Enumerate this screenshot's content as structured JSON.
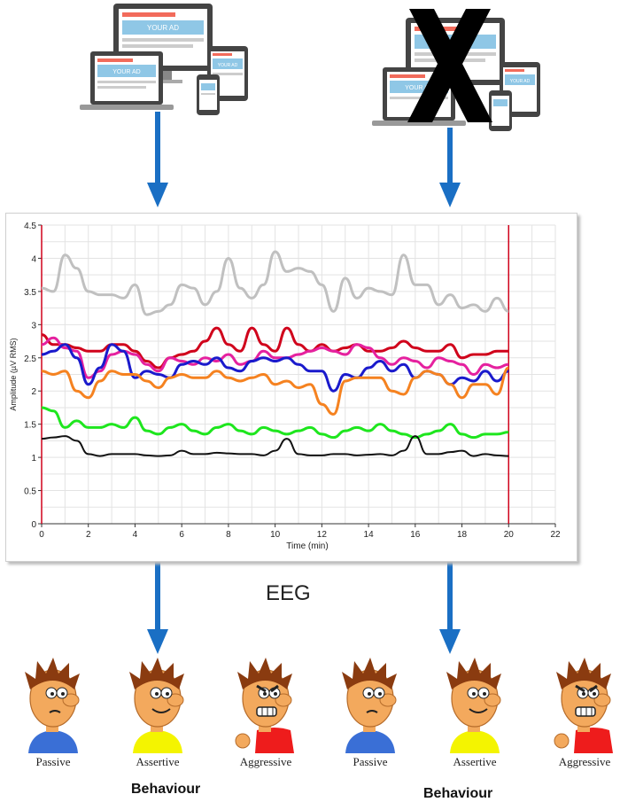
{
  "ads": {
    "ad_text": "YOUR AD",
    "left_group": {
      "crossed": false
    },
    "right_group": {
      "crossed": true
    }
  },
  "eeg_label": "EEG",
  "chart_data": {
    "type": "line",
    "xlabel": "Time (min)",
    "ylabel": "Amplitude (µV RMS)",
    "xlim": [
      0,
      22
    ],
    "ylim": [
      0,
      4.5
    ],
    "x_ticks": [
      "0",
      "2",
      "4",
      "6",
      "8",
      "10",
      "12",
      "14",
      "16",
      "18",
      "20",
      "22"
    ],
    "y_ticks": [
      "0",
      "0.5",
      "1",
      "1.5",
      "2",
      "2.5",
      "3",
      "3.5",
      "4",
      "4.5"
    ],
    "grid": true,
    "markers_x": [
      0,
      20
    ],
    "marker_color": "#d0021b",
    "x": [
      0,
      0.5,
      1,
      1.5,
      2,
      2.5,
      3,
      3.5,
      4,
      4.5,
      5,
      5.5,
      6,
      6.5,
      7,
      7.5,
      8,
      8.5,
      9,
      9.5,
      10,
      10.5,
      11,
      11.5,
      12,
      12.5,
      13,
      13.5,
      14,
      14.5,
      15,
      15.5,
      16,
      16.5,
      17,
      17.5,
      18,
      18.5,
      19,
      19.5,
      20
    ],
    "series": [
      {
        "color": "#c0c0c0",
        "values": [
          3.55,
          3.5,
          4.05,
          3.85,
          3.5,
          3.45,
          3.45,
          3.4,
          3.6,
          3.15,
          3.2,
          3.3,
          3.6,
          3.55,
          3.3,
          3.5,
          4.0,
          3.55,
          3.4,
          3.6,
          4.1,
          3.8,
          3.85,
          3.8,
          3.6,
          3.2,
          3.7,
          3.4,
          3.55,
          3.5,
          3.45,
          4.05,
          3.6,
          3.6,
          3.3,
          3.45,
          3.25,
          3.3,
          3.2,
          3.4,
          3.2
        ]
      },
      {
        "color": "#d0021b",
        "values": [
          2.85,
          2.7,
          2.7,
          2.65,
          2.6,
          2.6,
          2.7,
          2.7,
          2.6,
          2.45,
          2.35,
          2.5,
          2.55,
          2.6,
          2.75,
          2.95,
          2.7,
          2.6,
          2.95,
          2.7,
          2.6,
          2.95,
          2.7,
          2.6,
          2.7,
          2.6,
          2.65,
          2.7,
          2.6,
          2.6,
          2.65,
          2.75,
          2.65,
          2.6,
          2.6,
          2.7,
          2.5,
          2.55,
          2.55,
          2.6,
          2.6
        ]
      },
      {
        "color": "#e5219f",
        "values": [
          2.7,
          2.8,
          2.65,
          2.6,
          2.2,
          2.3,
          2.55,
          2.6,
          2.55,
          2.4,
          2.3,
          2.5,
          2.45,
          2.4,
          2.5,
          2.45,
          2.55,
          2.4,
          2.45,
          2.6,
          2.5,
          2.5,
          2.55,
          2.6,
          2.65,
          2.6,
          2.55,
          2.7,
          2.65,
          2.5,
          2.4,
          2.5,
          2.45,
          2.35,
          2.5,
          2.45,
          2.4,
          2.25,
          2.4,
          2.35,
          2.4
        ]
      },
      {
        "color": "#1a1acc",
        "values": [
          2.55,
          2.6,
          2.7,
          2.5,
          2.1,
          2.35,
          2.7,
          2.6,
          2.2,
          2.3,
          2.25,
          2.2,
          2.4,
          2.45,
          2.4,
          2.5,
          2.35,
          2.3,
          2.45,
          2.5,
          2.45,
          2.5,
          2.4,
          2.3,
          2.3,
          2.0,
          2.25,
          2.2,
          2.35,
          2.45,
          2.3,
          2.4,
          2.2,
          2.3,
          2.25,
          2.1,
          2.2,
          2.15,
          2.3,
          2.15,
          2.3
        ]
      },
      {
        "color": "#f58220",
        "values": [
          2.3,
          2.25,
          2.3,
          2.0,
          1.9,
          2.15,
          2.3,
          2.25,
          2.25,
          2.15,
          2.05,
          2.2,
          2.25,
          2.2,
          2.2,
          2.3,
          2.2,
          2.15,
          2.2,
          2.25,
          2.1,
          2.15,
          2.05,
          2.1,
          1.8,
          1.65,
          2.15,
          2.2,
          2.2,
          2.2,
          2.0,
          1.95,
          2.2,
          2.3,
          2.25,
          2.1,
          1.9,
          2.1,
          2.1,
          1.95,
          2.35
        ]
      },
      {
        "color": "#1ee61e",
        "values": [
          1.75,
          1.7,
          1.45,
          1.55,
          1.45,
          1.45,
          1.5,
          1.45,
          1.6,
          1.4,
          1.35,
          1.45,
          1.5,
          1.4,
          1.35,
          1.45,
          1.5,
          1.4,
          1.35,
          1.45,
          1.4,
          1.35,
          1.4,
          1.45,
          1.35,
          1.3,
          1.4,
          1.45,
          1.4,
          1.5,
          1.4,
          1.35,
          1.3,
          1.35,
          1.4,
          1.5,
          1.35,
          1.3,
          1.35,
          1.35,
          1.38
        ]
      },
      {
        "color": "#111111",
        "values": [
          1.28,
          1.3,
          1.32,
          1.25,
          1.05,
          1.02,
          1.05,
          1.05,
          1.05,
          1.03,
          1.02,
          1.03,
          1.1,
          1.05,
          1.05,
          1.07,
          1.06,
          1.05,
          1.05,
          1.03,
          1.1,
          1.28,
          1.05,
          1.03,
          1.03,
          1.05,
          1.05,
          1.03,
          1.04,
          1.05,
          1.03,
          1.1,
          1.32,
          1.05,
          1.05,
          1.08,
          1.1,
          1.02,
          1.05,
          1.03,
          1.02
        ]
      }
    ]
  },
  "people": [
    {
      "label": "Passive",
      "shirt": "#3a6fd6",
      "mood": "passive"
    },
    {
      "label": "Assertive",
      "shirt": "#f4f400",
      "mood": "assertive"
    },
    {
      "label": "Aggressive",
      "shirt": "#ee1c1c",
      "mood": "aggressive"
    },
    {
      "label": "Passive",
      "shirt": "#3a6fd6",
      "mood": "passive"
    },
    {
      "label": "Assertive",
      "shirt": "#f4f400",
      "mood": "assertive"
    },
    {
      "label": "Aggressive",
      "shirt": "#ee1c1c",
      "mood": "aggressive"
    }
  ],
  "behaviour_labels": [
    "Behaviour",
    "Behaviour"
  ]
}
